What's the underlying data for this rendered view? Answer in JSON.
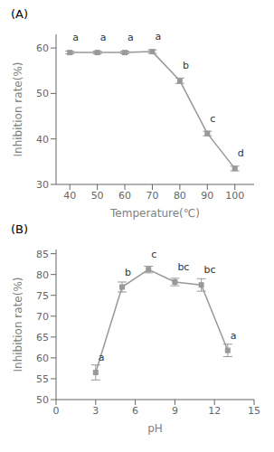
{
  "chart_data": [
    {
      "type": "line",
      "title": "(A)",
      "x": [
        40,
        50,
        60,
        70,
        80,
        90,
        100
      ],
      "values": [
        59.0,
        59.0,
        59.0,
        59.2,
        52.8,
        41.2,
        33.5
      ],
      "error": [
        0.3,
        0.3,
        0.3,
        0.4,
        0.6,
        0.5,
        0.5
      ],
      "annotations": [
        "a",
        "a",
        "a",
        "a",
        "b",
        "c",
        "d"
      ],
      "xlabel": "Temperature(℃)",
      "ylabel": "Inhibition rate(%)",
      "xlim": [
        35,
        107
      ],
      "ylim": [
        30,
        63
      ],
      "xticks": [
        40,
        50,
        60,
        70,
        80,
        90,
        100
      ],
      "yticks": [
        30,
        40,
        50,
        60
      ],
      "color": "#999999",
      "marker": "square"
    },
    {
      "type": "line",
      "title": "(B)",
      "x": [
        3,
        5,
        7,
        9,
        11,
        13
      ],
      "values": [
        56.5,
        77.0,
        81.2,
        78.2,
        77.5,
        61.8
      ],
      "error": [
        1.8,
        1.2,
        0.8,
        0.9,
        1.5,
        1.5
      ],
      "annotations": [
        "a",
        "b",
        "c",
        "bc",
        "bc",
        "a"
      ],
      "xlabel": "pH",
      "ylabel": "Inhibition rate(%)",
      "xlim": [
        0,
        15
      ],
      "ylim": [
        50,
        86
      ],
      "xticks": [
        0,
        3,
        6,
        9,
        12,
        15
      ],
      "yticks": [
        50,
        55,
        60,
        65,
        70,
        75,
        80,
        85
      ],
      "color": "#999999",
      "marker": "square"
    }
  ]
}
